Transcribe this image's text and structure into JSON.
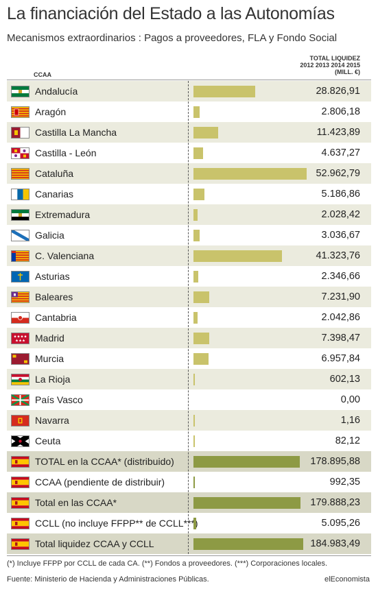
{
  "header": {
    "title": "La financiación del Estado a las Autonomías",
    "subtitle": "Mecanismos extraordinarios : Pagos a proveedores, FLA y Fondo Social",
    "col_ccaa": "CCAA",
    "col_total_line1": "TOTAL LIQUIDEZ",
    "col_total_line2": "2012 2013 2014 2015",
    "col_total_line3": "(MILL. €)"
  },
  "colors": {
    "bar_region": "#c9c36b",
    "bar_total": "#8d9a44",
    "row_alt": "#ebebde",
    "row_total": "#d8d8c6"
  },
  "chart_data": {
    "type": "bar",
    "orientation": "horizontal",
    "value_unit": "MILL. €",
    "categories": [
      "Andalucía",
      "Aragón",
      "Castilla La Mancha",
      "Castilla - León",
      "Cataluña",
      "Canarias",
      "Extremadura",
      "Galicia",
      "C. Valenciana",
      "Asturias",
      "Baleares",
      "Cantabria",
      "Madrid",
      "Murcia",
      "La Rioja",
      "País Vasco",
      "Navarra",
      "Ceuta",
      "TOTAL en la CCAA* (distribuido)",
      "CCAA (pendiente de distribuir)",
      "Total en las CCAA*",
      "CCLL (no incluye FFPP** de CCLL***)",
      "Total liquidez CCAA y CCLL"
    ],
    "values": [
      28826.91,
      2806.18,
      11423.89,
      4637.27,
      52962.79,
      5186.86,
      2028.42,
      3036.67,
      41323.76,
      2346.66,
      7231.9,
      2042.86,
      7398.47,
      6957.84,
      602.13,
      0.0,
      1.16,
      82.12,
      178895.88,
      992.35,
      179888.23,
      5095.26,
      184983.49
    ],
    "value_labels": [
      "28.826,91",
      "2.806,18",
      "11.423,89",
      "4.637,27",
      "52.962,79",
      "5.186,86",
      "2.028,42",
      "3.036,67",
      "41.323,76",
      "2.346,66",
      "7.231,90",
      "2.042,86",
      "7.398,47",
      "6.957,84",
      "602,13",
      "0,00",
      "1,16",
      "82,12",
      "178.895,88",
      "992,35",
      "179.888,23",
      "5.095,26",
      "184.983,49"
    ],
    "flags": [
      "andalucia-flag",
      "aragon-flag",
      "castilla-la-mancha-flag",
      "castilla-leon-flag",
      "cataluna-flag",
      "canarias-flag",
      "extremadura-flag",
      "galicia-flag",
      "c-valenciana-flag",
      "asturias-flag",
      "baleares-flag",
      "cantabria-flag",
      "madrid-flag",
      "murcia-flag",
      "la-rioja-flag",
      "pais-vasco-flag",
      "navarra-flag",
      "ceuta-flag",
      "spain-flag",
      "spain-flag",
      "spain-flag",
      "spain-flag",
      "spain-flag"
    ],
    "row_kind": [
      "region",
      "region",
      "region",
      "region",
      "region",
      "region",
      "region",
      "region",
      "region",
      "region",
      "region",
      "region",
      "region",
      "region",
      "region",
      "region",
      "region",
      "region",
      "total",
      "total",
      "total",
      "total",
      "total"
    ],
    "region_scale_max": 52962.79,
    "total_scale_max": 184983.49
  },
  "footer": {
    "note": "(*) Incluye FFPP por CCLL de cada CA. (**) Fondos a proveedores. (***) Corporaciones locales.",
    "source": "Fuente: Ministerio de Hacienda y Administraciones Públicas.",
    "brand": "elEconomista"
  }
}
